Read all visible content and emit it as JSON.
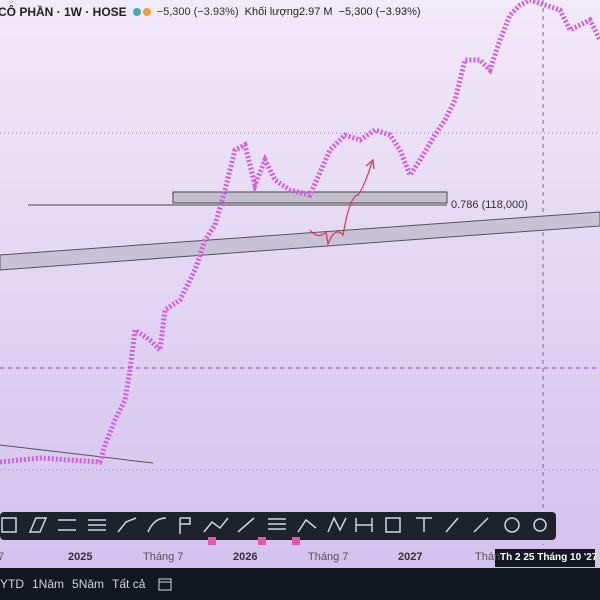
{
  "header": {
    "symbol": "CÔ PHẦN · 1W · HOSE",
    "change": "−5,300 (−3.93%)",
    "volume_label": "Khối lượng",
    "volume": "2.97 M",
    "volume_change": "−5,300 (−3.93%)"
  },
  "chart": {
    "fib_label": "0.786 (118,000)"
  },
  "time_axis": [
    "7",
    "2025",
    "Tháng 7",
    "2026",
    "Tháng 7",
    "2027",
    "Thán",
    "Th 2 25 Tháng 10 '27"
  ],
  "range_bar": [
    "YTD",
    "1Năm",
    "5Năm",
    "Tất cả"
  ]
}
